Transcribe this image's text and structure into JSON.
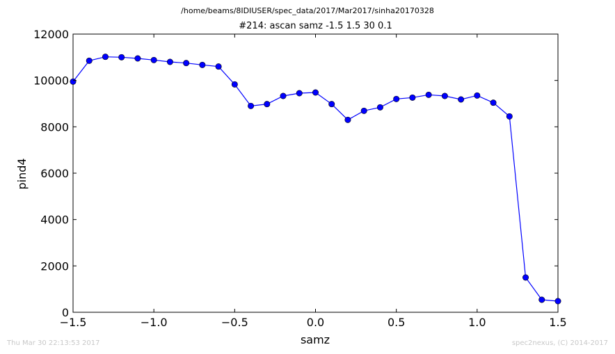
{
  "header": {
    "suptitle": "/home/beams/8IDIUSER/spec_data/2017/Mar2017/sinha20170328"
  },
  "footer": {
    "timestamp": "Thu Mar 30 22:13:53 2017",
    "credit": "spec2nexus, (C) 2014-2017"
  },
  "chart_data": {
    "type": "line",
    "title": "#214: ascan  samz -1.5 1.5  30 0.1",
    "xlabel": "samz",
    "ylabel": "pind4",
    "xlim": [
      -1.5,
      1.5
    ],
    "ylim": [
      0,
      12000
    ],
    "x_ticks": [
      "−1.5",
      "−1.0",
      "−0.5",
      "0.0",
      "0.5",
      "1.0",
      "1.5"
    ],
    "x_tick_values": [
      -1.5,
      -1.0,
      -0.5,
      0.0,
      0.5,
      1.0,
      1.5
    ],
    "y_ticks": [
      "0",
      "2000",
      "4000",
      "6000",
      "8000",
      "10000",
      "12000"
    ],
    "y_tick_values": [
      0,
      2000,
      4000,
      6000,
      8000,
      10000,
      12000
    ],
    "grid": false,
    "series": [
      {
        "color": "#0000ff",
        "marker": "circle",
        "x": [
          -1.5,
          -1.4,
          -1.3,
          -1.2,
          -1.1,
          -1.0,
          -0.9,
          -0.8,
          -0.7,
          -0.6,
          -0.5,
          -0.4,
          -0.3,
          -0.2,
          -0.1,
          0.0,
          0.1,
          0.2,
          0.3,
          0.4,
          0.5,
          0.6,
          0.7,
          0.8,
          0.9,
          1.0,
          1.1,
          1.2,
          1.3,
          1.4,
          1.5
        ],
        "y": [
          9950,
          10850,
          11020,
          11000,
          10950,
          10880,
          10800,
          10750,
          10670,
          10600,
          9830,
          8900,
          8980,
          9330,
          9450,
          9480,
          8980,
          8300,
          8690,
          8840,
          9200,
          9260,
          9380,
          9330,
          9180,
          9350,
          9040,
          8450,
          1500,
          540,
          480
        ]
      }
    ]
  }
}
